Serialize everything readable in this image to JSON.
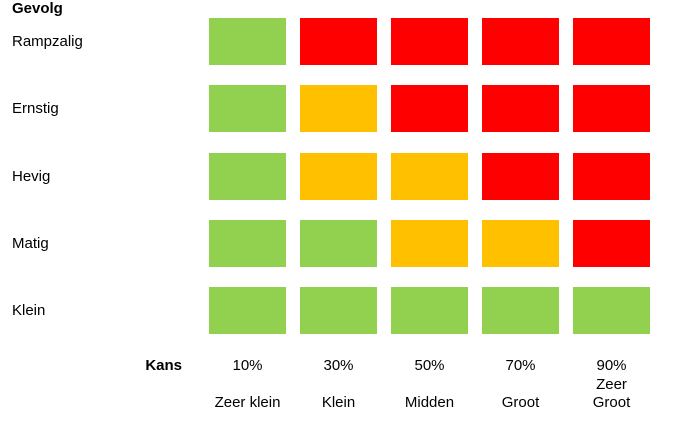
{
  "chart_data": {
    "type": "heatmap",
    "y_axis_title": "Gevolg",
    "x_axis_title": "Kans",
    "rows": [
      "Rampzalig",
      "Ernstig",
      "Hevig",
      "Matig",
      "Klein"
    ],
    "columns": [
      {
        "percent": "10%",
        "label": "Zeer klein"
      },
      {
        "percent": "30%",
        "label": "Klein"
      },
      {
        "percent": "50%",
        "label": "Midden"
      },
      {
        "percent": "70%",
        "label": "Groot"
      },
      {
        "percent": "90%",
        "label": "Zeer\nGroot"
      }
    ],
    "cells": [
      [
        "green",
        "red",
        "red",
        "red",
        "red"
      ],
      [
        "green",
        "amber",
        "red",
        "red",
        "red"
      ],
      [
        "green",
        "amber",
        "amber",
        "red",
        "red"
      ],
      [
        "green",
        "green",
        "amber",
        "amber",
        "red"
      ],
      [
        "green",
        "green",
        "green",
        "green",
        "green"
      ]
    ],
    "color_map": {
      "green": "#92D050",
      "amber": "#FFC000",
      "red": "#FF0000"
    },
    "background": "#FFFFFF",
    "grid_lines": false,
    "legend": false
  }
}
